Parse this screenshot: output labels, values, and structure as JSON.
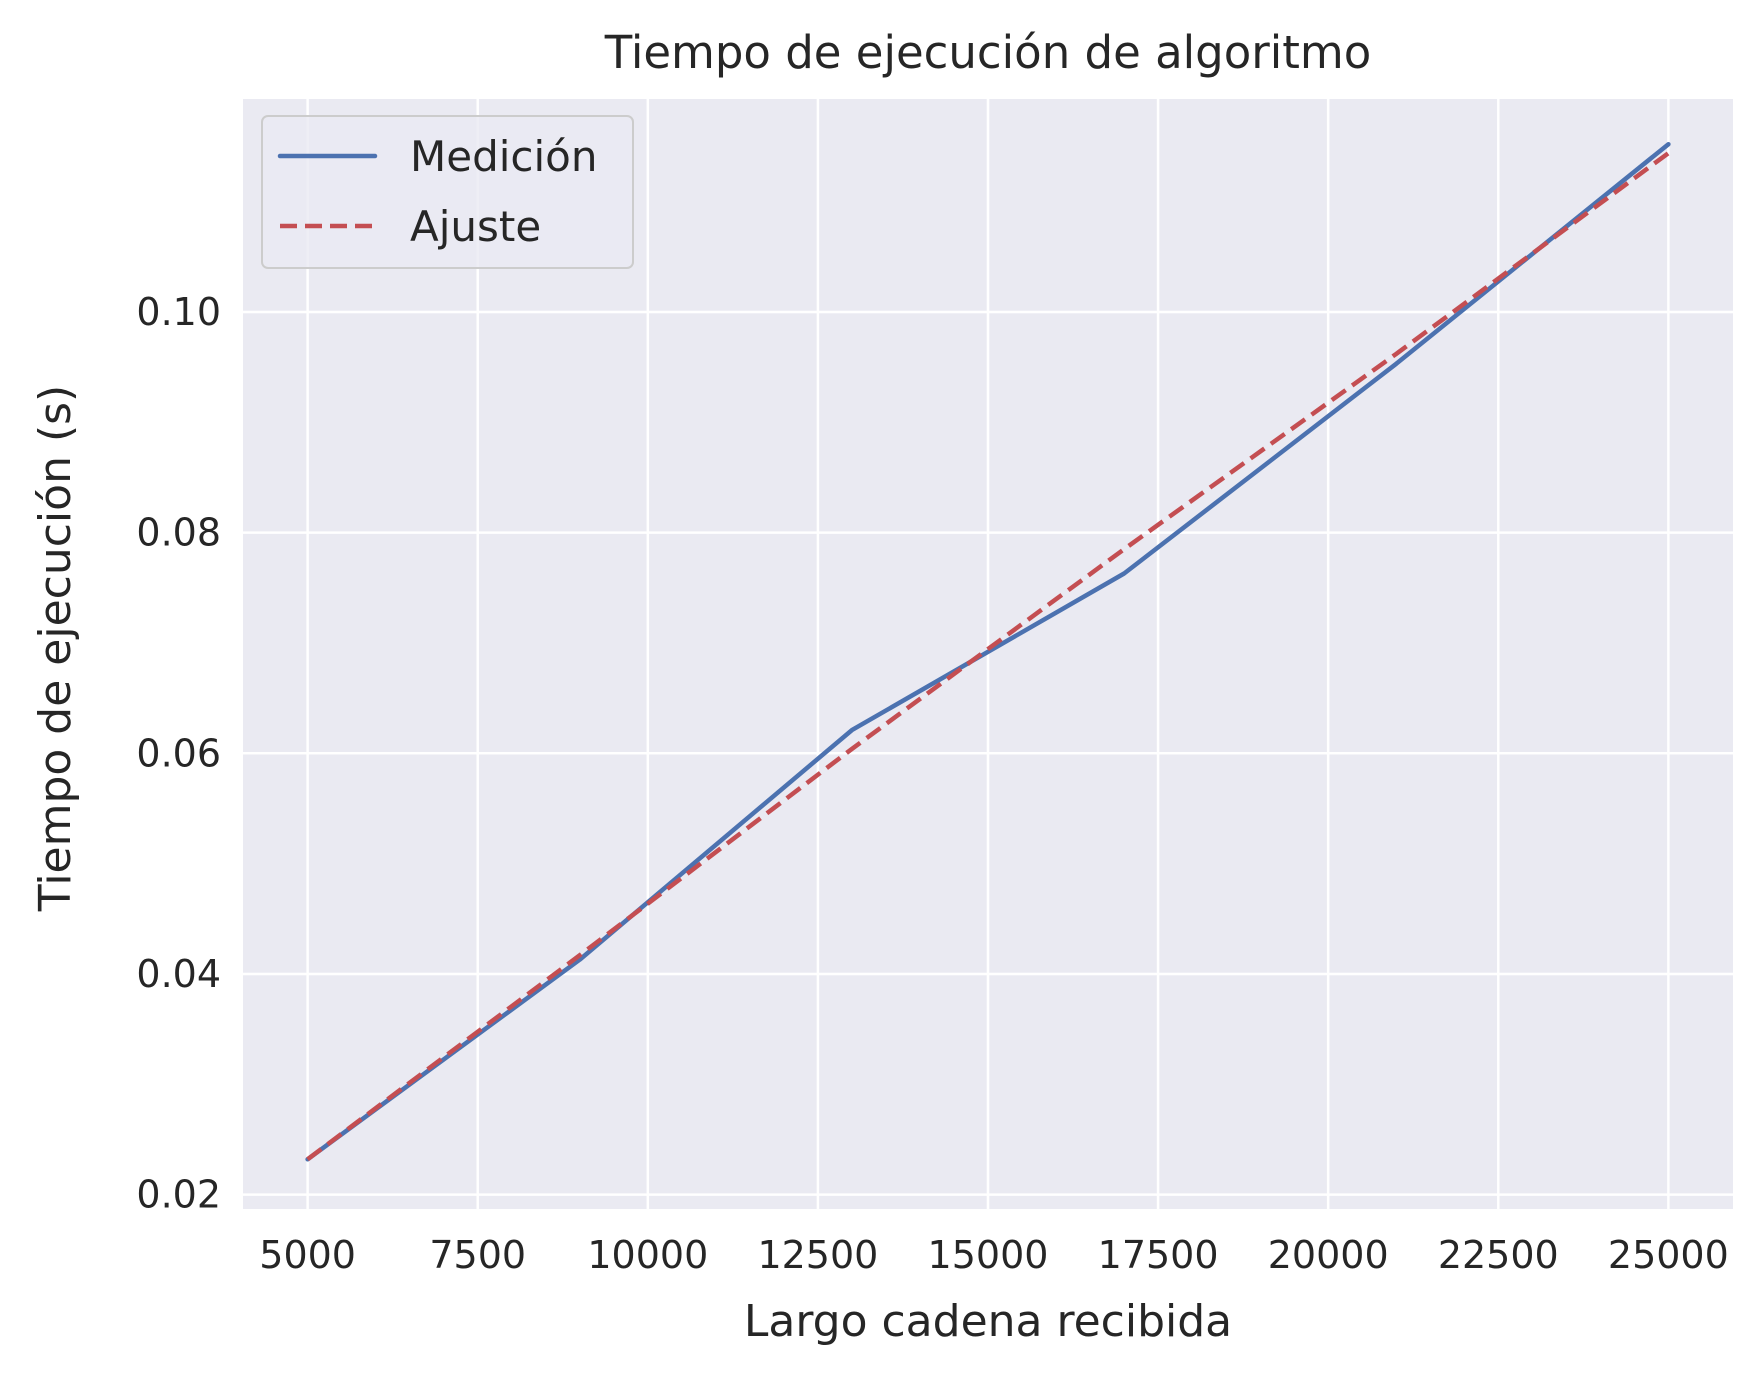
{
  "chart_data": {
    "type": "line",
    "title": "Tiempo de ejecución de algoritmo",
    "xlabel": "Largo cadena recibida",
    "ylabel": "Tiempo de ejecución (s)",
    "xlim": [
      4050,
      25950
    ],
    "ylim": [
      0.0187,
      0.1193
    ],
    "x_ticks": [
      5000,
      7500,
      10000,
      12500,
      15000,
      17500,
      20000,
      22500,
      25000
    ],
    "x_tick_labels": [
      "5000",
      "7500",
      "10000",
      "12500",
      "15000",
      "17500",
      "20000",
      "22500",
      "25000"
    ],
    "y_ticks": [
      0.02,
      0.04,
      0.06,
      0.08,
      0.1
    ],
    "y_tick_labels": [
      "0.02",
      "0.04",
      "0.06",
      "0.08",
      "0.10"
    ],
    "grid": true,
    "legend_position": "top-left",
    "x": [
      5000,
      9000,
      13000,
      17000,
      21000,
      25000
    ],
    "series": [
      {
        "name": "Medición",
        "style": "solid",
        "color": "#4c72b0",
        "values": [
          0.0232,
          0.0413,
          0.0621,
          0.0763,
          0.0953,
          0.1152
        ]
      },
      {
        "name": "Ajuste",
        "style": "dashed",
        "color": "#c44e52",
        "values": [
          0.0232,
          0.0417,
          0.0604,
          0.0785,
          0.0962,
          0.1144
        ]
      }
    ],
    "plot_background": "#eaeaf2",
    "grid_color": "#ffffff"
  }
}
